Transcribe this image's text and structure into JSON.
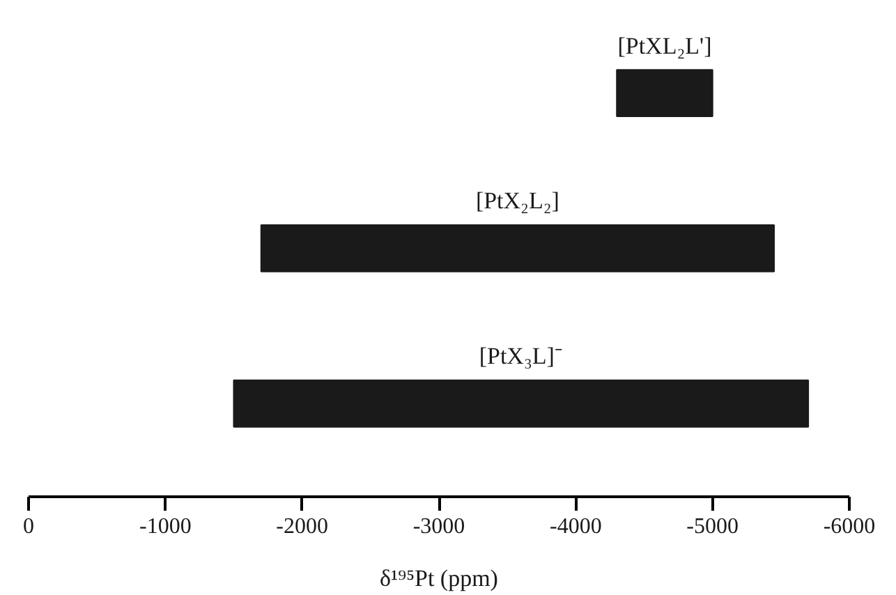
{
  "chart_data": {
    "type": "bar",
    "orientation": "horizontal",
    "categories": [
      "[PtXL₂L']",
      "[PtX₂L₂]",
      "[PtX₃L]⁻"
    ],
    "base": [
      -4300,
      -1700,
      -1500
    ],
    "values": [
      -700,
      -3750,
      -4200
    ],
    "color": "#1a1a1a",
    "xlabel": "δ¹⁹⁵Pt (ppm)",
    "xlim": [
      0,
      -6000
    ],
    "xticks": [
      0,
      -1000,
      -2000,
      -3000,
      -4000,
      -5000,
      -6000
    ],
    "grid": false
  }
}
